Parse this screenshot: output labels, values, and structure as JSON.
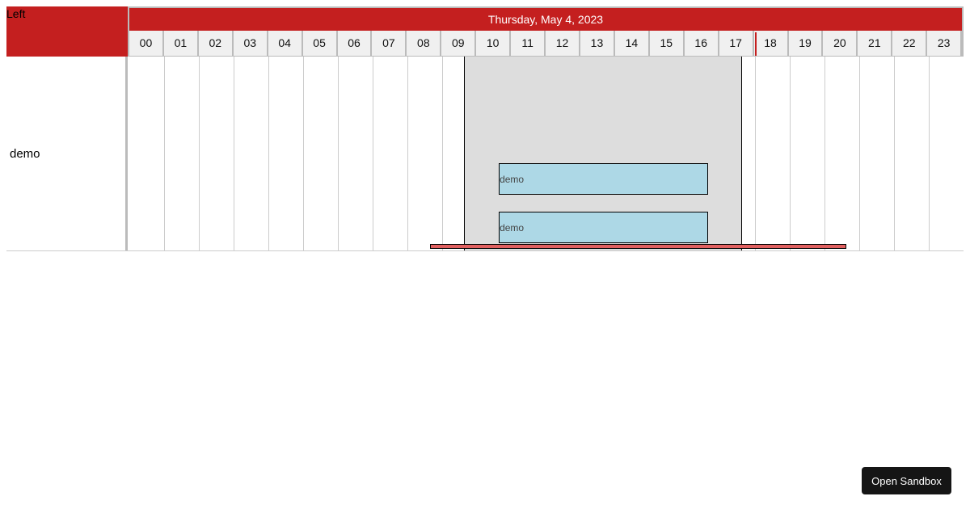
{
  "left_header": "Left",
  "row_label": "demo",
  "date_header": "Thursday, May 4, 2023",
  "hours": [
    "00",
    "01",
    "02",
    "03",
    "04",
    "05",
    "06",
    "07",
    "08",
    "09",
    "10",
    "11",
    "12",
    "13",
    "14",
    "15",
    "16",
    "17",
    "18",
    "19",
    "20",
    "21",
    "22",
    "23"
  ],
  "highlight_range": {
    "start_hour": 9.63,
    "end_hour": 17.63
  },
  "events": [
    {
      "label": "demo",
      "start_hour": 10.63,
      "end_hour": 16.65,
      "color": "#add8e6"
    },
    {
      "label": "demo",
      "start_hour": 10.63,
      "end_hour": 16.65,
      "color": "#add8e6"
    }
  ],
  "range_bar": {
    "start_hour": 8.65,
    "end_hour": 20.63,
    "color": "#e06060"
  },
  "header_color": "#c41f1f",
  "sandbox_button": "Open Sandbox"
}
